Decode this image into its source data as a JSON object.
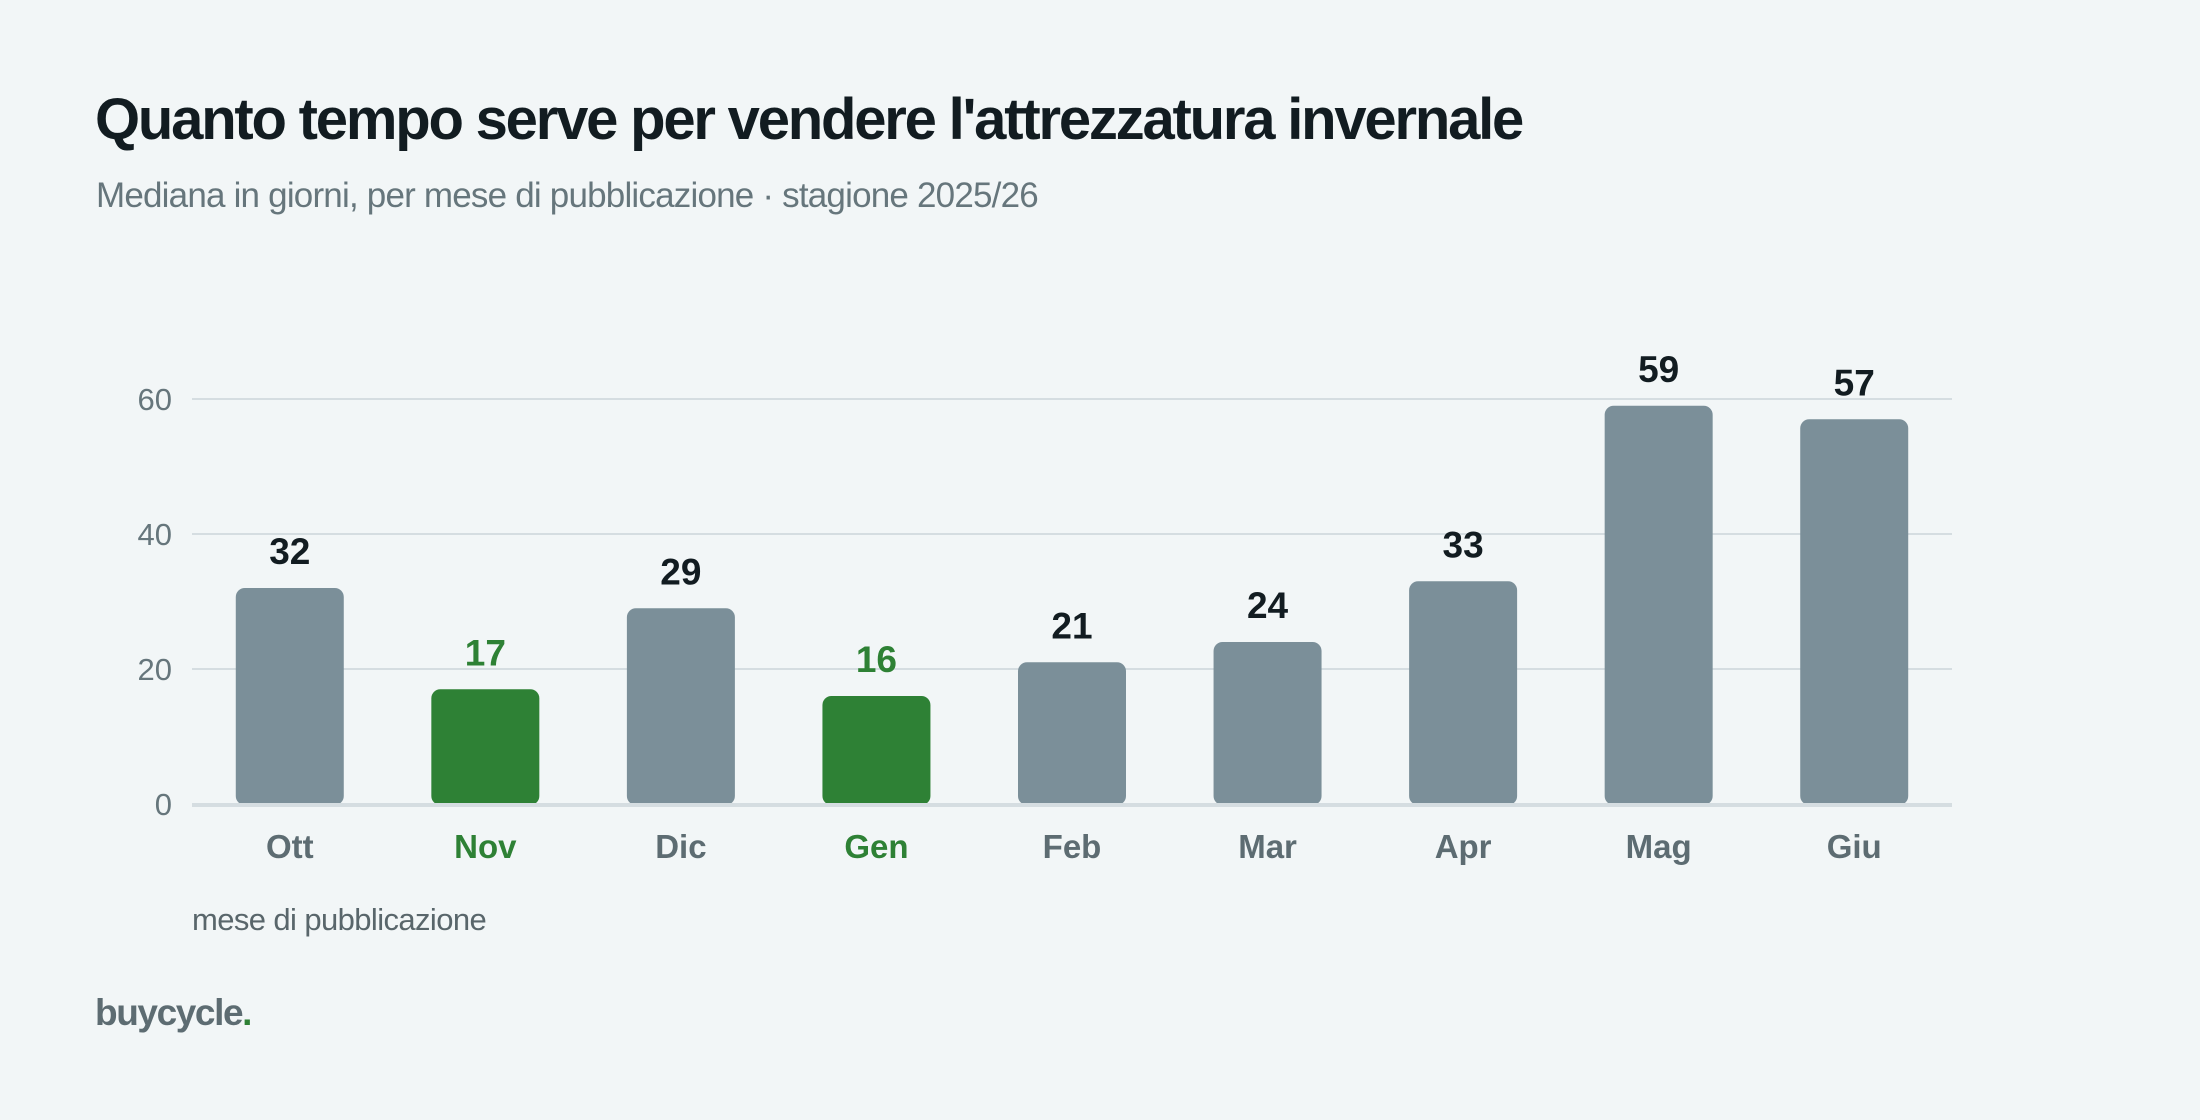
{
  "header": {
    "title": "Quanto tempo serve per vendere l'attrezzatura invernale",
    "subtitle": "Mediana in giorni, per mese di pubblicazione · stagione 2025/26"
  },
  "brand": {
    "name": "buycycle",
    "dot": "."
  },
  "colors": {
    "background": "#f2f6f7",
    "bar_default": "#7b8f99",
    "bar_highlight": "#2e8135",
    "grid": "#d5dde1",
    "text_dark": "#121c21",
    "text_muted": "#66767c"
  },
  "chart_data": {
    "type": "bar",
    "title": "Quanto tempo serve per vendere l'attrezzatura invernale",
    "subtitle": "Mediana in giorni, per mese di pubblicazione · stagione 2025/26",
    "xlabel": "mese di pubblicazione",
    "ylabel": "",
    "categories": [
      "Ott",
      "Nov",
      "Dic",
      "Gen",
      "Feb",
      "Mar",
      "Apr",
      "Mag",
      "Giu"
    ],
    "values": [
      32,
      17,
      29,
      16,
      21,
      24,
      33,
      59,
      57
    ],
    "highlighted": [
      "Nov",
      "Gen"
    ],
    "ylim": [
      0,
      65
    ],
    "yticks": [
      0,
      20,
      40,
      60
    ],
    "grid": true,
    "data_labels": true,
    "legend": "none"
  }
}
